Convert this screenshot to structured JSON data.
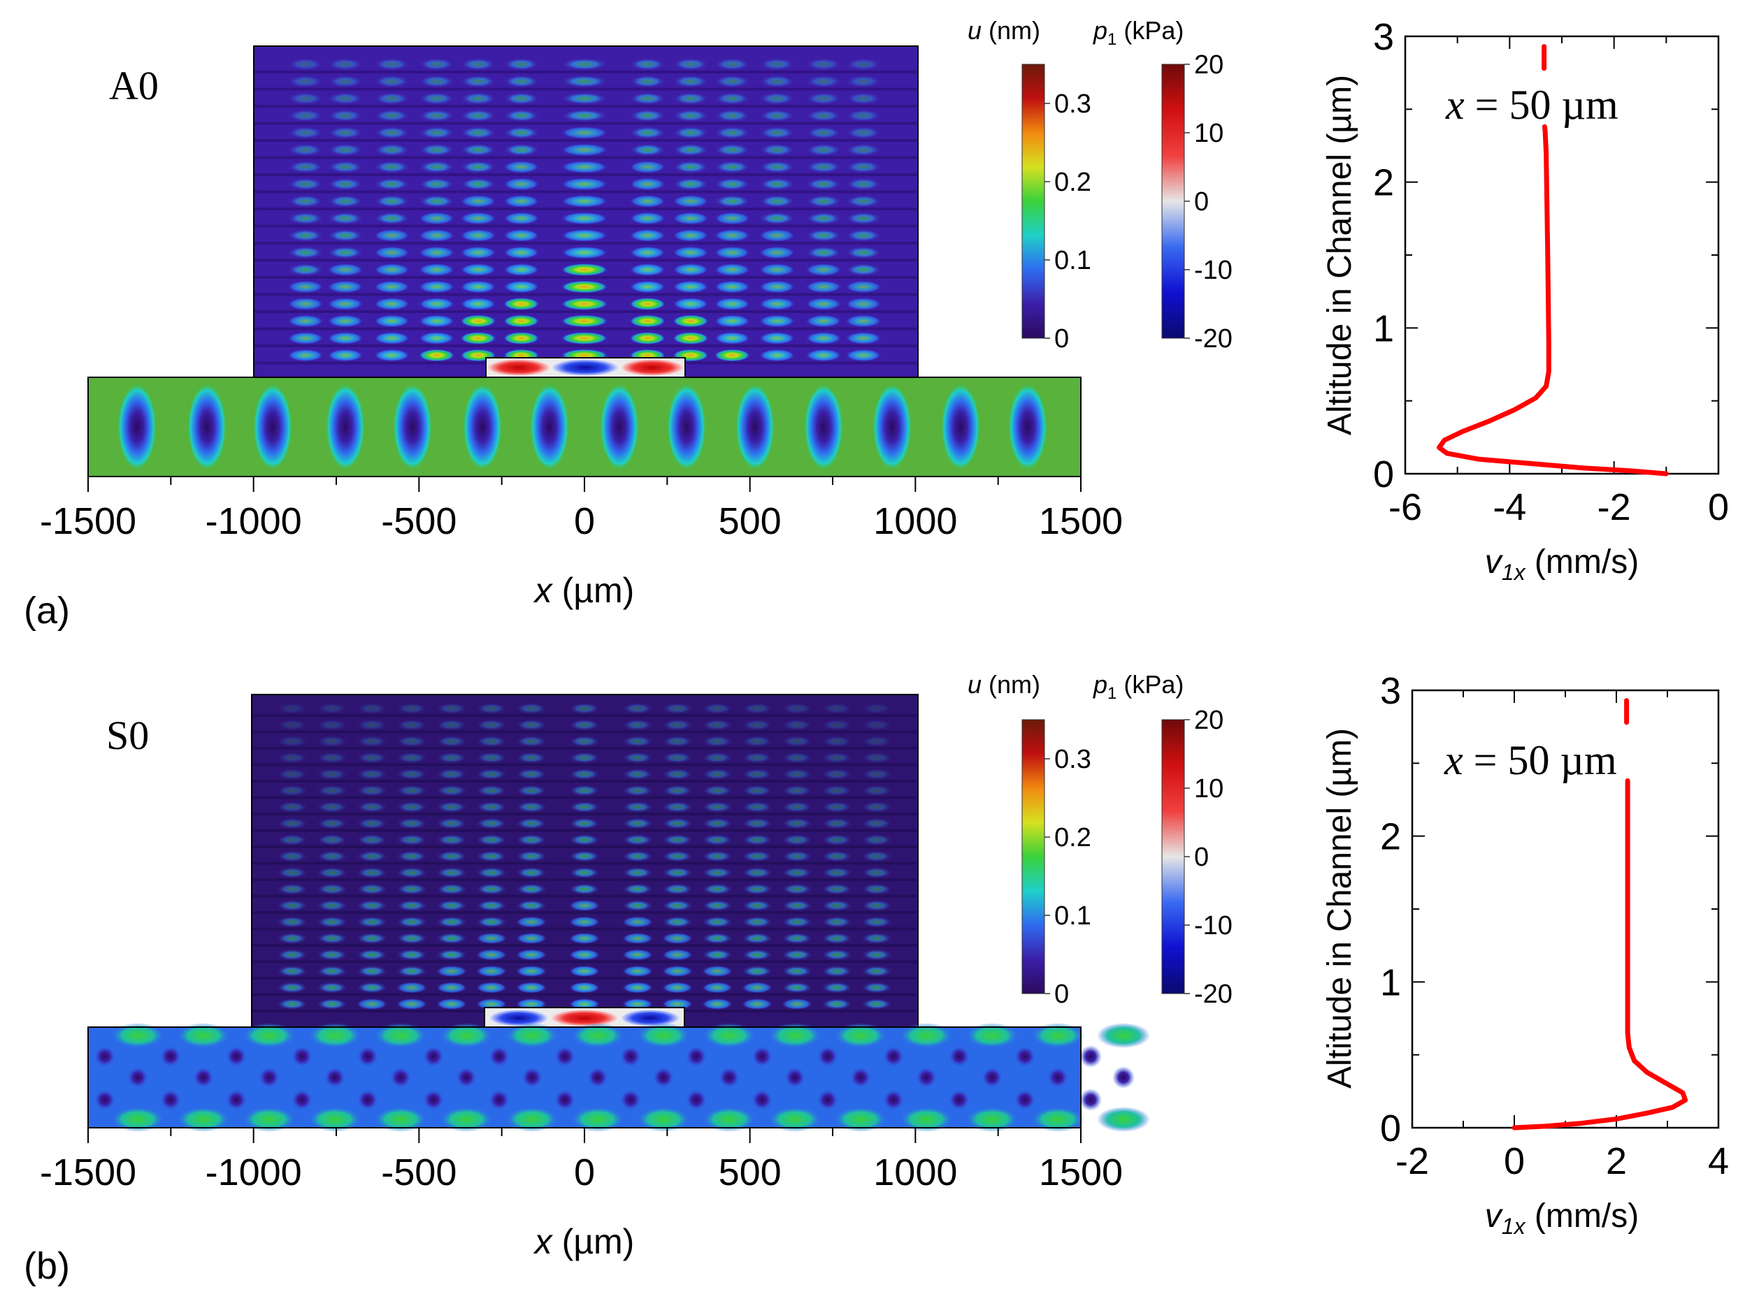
{
  "panels": [
    {
      "panel_label": "(a)",
      "mode_label": "A0",
      "xaxis": {
        "label_var": "x",
        "label_unit": " (µm)",
        "ticks": [
          "-1500",
          "-1000",
          "-500",
          "0",
          "500",
          "1000",
          "1500"
        ],
        "tick_values": [
          -1500,
          -1000,
          -500,
          0,
          500,
          1000,
          1500
        ]
      },
      "colorbar_u": {
        "label_var": "u",
        "label_unit": " (nm)",
        "ticks": [
          "0.3",
          "0.2",
          "0.1",
          "0"
        ],
        "tick_values": [
          0.3,
          0.2,
          0.1,
          0
        ],
        "range": [
          0,
          0.35
        ],
        "colors": [
          "#2b0a5e",
          "#3b1fa8",
          "#2f6bf0",
          "#1fd0c8",
          "#3ad13a",
          "#d6e020",
          "#f08a10",
          "#c01010",
          "#6b1a0a"
        ]
      },
      "colorbar_p": {
        "label_var": "p",
        "label_sub": "1",
        "label_unit": " (kPa)",
        "ticks": [
          "20",
          "10",
          "0",
          "-10",
          "-20"
        ],
        "tick_values": [
          20,
          10,
          0,
          -10,
          -20
        ],
        "range": [
          -20,
          20
        ],
        "colors": [
          "#0a0a6e",
          "#1010d0",
          "#3a6af0",
          "#e6e6e6",
          "#f04040",
          "#d01010",
          "#6e0a0a"
        ]
      }
    },
    {
      "panel_label": "(b)",
      "mode_label": "S0",
      "xaxis": {
        "label_var": "x",
        "label_unit": " (µm)",
        "ticks": [
          "-1500",
          "-1000",
          "-500",
          "0",
          "500",
          "1000",
          "1500"
        ],
        "tick_values": [
          -1500,
          -1000,
          -500,
          0,
          500,
          1000,
          1500
        ]
      },
      "colorbar_u": {
        "label_var": "u",
        "label_unit": " (nm)",
        "ticks": [
          "0.3",
          "0.2",
          "0.1",
          "0"
        ],
        "tick_values": [
          0.3,
          0.2,
          0.1,
          0
        ],
        "range": [
          0,
          0.35
        ],
        "colors": [
          "#2b0a5e",
          "#3b1fa8",
          "#2f6bf0",
          "#1fd0c8",
          "#3ad13a",
          "#d6e020",
          "#f08a10",
          "#c01010",
          "#6b1a0a"
        ]
      },
      "colorbar_p": {
        "label_var": "p",
        "label_sub": "1",
        "label_unit": " (kPa)",
        "ticks": [
          "20",
          "10",
          "0",
          "-10",
          "-20"
        ],
        "tick_values": [
          20,
          10,
          0,
          -10,
          -20
        ],
        "range": [
          -20,
          20
        ],
        "colors": [
          "#0a0a6e",
          "#1010d0",
          "#3a6af0",
          "#e6e6e6",
          "#f04040",
          "#d01010",
          "#6e0a0a"
        ]
      }
    }
  ],
  "chart_data": [
    {
      "type": "line",
      "annotation": "x = 50 µm",
      "annotation_var": "x",
      "annotation_rest": " = 50 µm",
      "xlabel_var": "v",
      "xlabel_sub": "1x",
      "xlabel_unit": " (mm/s)",
      "ylabel": "Altitude in Channel (µm)",
      "xlim": [
        -6,
        0
      ],
      "ylim": [
        0,
        3
      ],
      "xticks": [
        -6,
        -4,
        -2,
        0
      ],
      "xtick_labels": [
        "-6",
        "-4",
        "-2",
        "0"
      ],
      "yticks": [
        0,
        1,
        2,
        3
      ],
      "ytick_labels": [
        "0",
        "1",
        "2",
        "3"
      ],
      "line_color": "#ff0000",
      "series": [
        {
          "x": [
            -1.0,
            -1.7,
            -2.6,
            -3.6,
            -4.6,
            -5.2,
            -5.35,
            -5.25,
            -4.9,
            -4.4,
            -3.9,
            -3.5,
            -3.3,
            -3.25,
            -3.25,
            -3.27,
            -3.3,
            -3.32,
            -3.33
          ],
          "y": [
            0.0,
            0.02,
            0.04,
            0.07,
            0.1,
            0.14,
            0.18,
            0.23,
            0.29,
            0.36,
            0.44,
            0.52,
            0.6,
            0.7,
            0.9,
            1.5,
            2.2,
            2.35,
            2.38
          ]
        },
        {
          "x": [
            -3.34,
            -3.34
          ],
          "y": [
            2.78,
            2.93
          ]
        }
      ]
    },
    {
      "type": "line",
      "annotation": "x = 50 µm",
      "annotation_var": "x",
      "annotation_rest": " = 50 µm",
      "xlabel_var": "v",
      "xlabel_sub": "1x",
      "xlabel_unit": " (mm/s)",
      "ylabel": "Altitude in Channel (µm)",
      "xlim": [
        -2,
        4
      ],
      "ylim": [
        0,
        3
      ],
      "xticks": [
        -2,
        0,
        2,
        4
      ],
      "xtick_labels": [
        "-2",
        "0",
        "2",
        "4"
      ],
      "yticks": [
        0,
        1,
        2,
        3
      ],
      "ytick_labels": [
        "0",
        "1",
        "2",
        "3"
      ],
      "line_color": "#ff0000",
      "series": [
        {
          "x": [
            0.0,
            0.6,
            1.3,
            2.0,
            2.6,
            3.1,
            3.35,
            3.3,
            3.0,
            2.6,
            2.35,
            2.25,
            2.22,
            2.22,
            2.22,
            2.22
          ],
          "y": [
            0.0,
            0.01,
            0.03,
            0.06,
            0.1,
            0.14,
            0.19,
            0.24,
            0.3,
            0.38,
            0.46,
            0.55,
            0.65,
            1.0,
            1.8,
            2.38
          ]
        },
        {
          "x": [
            2.2,
            2.2
          ],
          "y": [
            2.78,
            2.93
          ]
        }
      ]
    }
  ]
}
